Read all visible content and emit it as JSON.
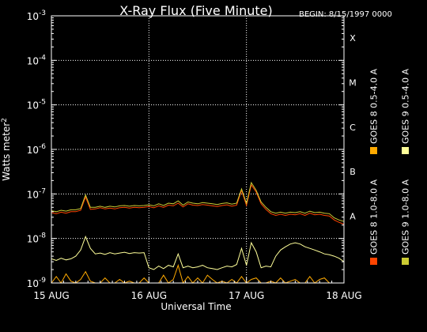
{
  "chart_data": {
    "type": "line",
    "title": "X-Ray Flux (Five Minute)",
    "begin_label": "BEGIN: 8/15/1997 0000",
    "xlabel": "Universal Time",
    "ylabel": "Watts meter",
    "ylabel_sup": "2",
    "y_scale": "log",
    "ylim": [
      1e-09,
      0.001
    ],
    "xlim": [
      0,
      3
    ],
    "y_ticks": [
      {
        "value": 0.001,
        "base": "10",
        "exp": "-3"
      },
      {
        "value": 0.0001,
        "base": "10",
        "exp": "-4"
      },
      {
        "value": 1e-05,
        "base": "10",
        "exp": "-5"
      },
      {
        "value": 1e-06,
        "base": "10",
        "exp": "-6"
      },
      {
        "value": 1e-07,
        "base": "10",
        "exp": "-7"
      },
      {
        "value": 1e-08,
        "base": "10",
        "exp": "-8"
      },
      {
        "value": 1e-09,
        "base": "10",
        "exp": "-9"
      }
    ],
    "x_ticks": [
      {
        "value": 0,
        "label": "15 AUG"
      },
      {
        "value": 1,
        "label": "16 AUG"
      },
      {
        "value": 2,
        "label": "17 AUG"
      },
      {
        "value": 3,
        "label": "18 AUG"
      }
    ],
    "flare_classes": [
      {
        "label": "X",
        "value": 0.0001
      },
      {
        "label": "M",
        "value": 1e-05
      },
      {
        "label": "C",
        "value": 1e-06
      },
      {
        "label": "B",
        "value": 1e-07
      },
      {
        "label": "A",
        "value": 1e-08
      }
    ],
    "grid": true,
    "legend_position": "right",
    "colors": {
      "goes8_long": "#ff4400",
      "goes8_short": "#ffaa00",
      "goes9_long": "#cccc33",
      "goes9_short": "#ffff99"
    },
    "series": [
      {
        "name": "GOES 8 1.0-8.0 A",
        "color": "#ff4400",
        "x": [
          0.0,
          0.05,
          0.1,
          0.15,
          0.2,
          0.25,
          0.3,
          0.35,
          0.4,
          0.45,
          0.5,
          0.55,
          0.6,
          0.65,
          0.7,
          0.75,
          0.8,
          0.85,
          0.9,
          0.95,
          1.0,
          1.05,
          1.1,
          1.15,
          1.2,
          1.25,
          1.3,
          1.35,
          1.4,
          1.45,
          1.5,
          1.55,
          1.6,
          1.65,
          1.7,
          1.75,
          1.8,
          1.85,
          1.9,
          1.95,
          2.0,
          2.05,
          2.1,
          2.15,
          2.2,
          2.25,
          2.3,
          2.35,
          2.4,
          2.45,
          2.5,
          2.55,
          2.6,
          2.65,
          2.7,
          2.75,
          2.8,
          2.85,
          2.9,
          2.95,
          3.0
        ],
        "y": [
          3.8e-08,
          3.6e-08,
          3.9e-08,
          3.7e-08,
          4e-08,
          4e-08,
          4.3e-08,
          8.5e-08,
          4.5e-08,
          4.6e-08,
          4.9e-08,
          4.6e-08,
          4.8e-08,
          4.6e-08,
          4.9e-08,
          5e-08,
          4.8e-08,
          5e-08,
          4.9e-08,
          5e-08,
          5.2e-08,
          4.9e-08,
          5.4e-08,
          5e-08,
          5.6e-08,
          5.4e-08,
          6.2e-08,
          5.1e-08,
          6e-08,
          5.6e-08,
          5.5e-08,
          5.8e-08,
          5.6e-08,
          5.4e-08,
          5.2e-08,
          5.5e-08,
          5.7e-08,
          5.3e-08,
          5.6e-08,
          1.2e-07,
          5.5e-08,
          1.6e-07,
          1.1e-07,
          6e-08,
          4.5e-08,
          3.6e-08,
          3.3e-08,
          3.5e-08,
          3.3e-08,
          3.5e-08,
          3.4e-08,
          3.6e-08,
          3.3e-08,
          3.7e-08,
          3.4e-08,
          3.5e-08,
          3.3e-08,
          3.2e-08,
          2.6e-08,
          2.3e-08,
          2.1e-08
        ]
      },
      {
        "name": "GOES 8 0.5-4.0 A",
        "color": "#ffaa00",
        "x": [
          0.0,
          0.05,
          0.1,
          0.15,
          0.2,
          0.25,
          0.3,
          0.35,
          0.4,
          0.45,
          0.5,
          0.55,
          0.6,
          0.65,
          0.7,
          0.75,
          0.8,
          0.85,
          0.9,
          0.95,
          1.0,
          1.05,
          1.1,
          1.15,
          1.2,
          1.25,
          1.3,
          1.35,
          1.4,
          1.45,
          1.5,
          1.55,
          1.6,
          1.65,
          1.7,
          1.75,
          1.8,
          1.85,
          1.9,
          1.95,
          2.0,
          2.05,
          2.1,
          2.15,
          2.2,
          2.25,
          2.3,
          2.35,
          2.4,
          2.45,
          2.5,
          2.55,
          2.6,
          2.65,
          2.7,
          2.75,
          2.8,
          2.85,
          2.9,
          2.95,
          3.0
        ],
        "y": [
          1e-09,
          1.4e-09,
          1e-09,
          1.6e-09,
          1.1e-09,
          1e-09,
          1.2e-09,
          1.8e-09,
          1.1e-09,
          1e-09,
          1e-09,
          1.3e-09,
          1e-09,
          1e-09,
          1.2e-09,
          1e-09,
          1.1e-09,
          1e-09,
          1e-09,
          1.3e-09,
          1e-09,
          1e-09,
          1e-09,
          1.5e-09,
          1e-09,
          1.2e-09,
          2.5e-09,
          1e-09,
          1.4e-09,
          1e-09,
          1.3e-09,
          1e-09,
          1.5e-09,
          1.2e-09,
          1e-09,
          1.1e-09,
          1e-09,
          1.2e-09,
          1e-09,
          1.4e-09,
          1e-09,
          1.2e-09,
          1.3e-09,
          1e-09,
          1e-09,
          1.1e-09,
          1e-09,
          1.3e-09,
          1e-09,
          1.1e-09,
          1.2e-09,
          1e-09,
          1e-09,
          1.4e-09,
          1e-09,
          1.2e-09,
          1.3e-09,
          1e-09,
          1e-09,
          1e-09,
          1e-09
        ]
      },
      {
        "name": "GOES 9 1.0-8.0 A",
        "color": "#cccc33",
        "x": [
          0.0,
          0.05,
          0.1,
          0.15,
          0.2,
          0.25,
          0.3,
          0.35,
          0.4,
          0.45,
          0.5,
          0.55,
          0.6,
          0.65,
          0.7,
          0.75,
          0.8,
          0.85,
          0.9,
          0.95,
          1.0,
          1.05,
          1.1,
          1.15,
          1.2,
          1.25,
          1.3,
          1.35,
          1.4,
          1.45,
          1.5,
          1.55,
          1.6,
          1.65,
          1.7,
          1.75,
          1.8,
          1.85,
          1.9,
          1.95,
          2.0,
          2.05,
          2.1,
          2.15,
          2.2,
          2.25,
          2.3,
          2.35,
          2.4,
          2.45,
          2.5,
          2.55,
          2.6,
          2.65,
          2.7,
          2.75,
          2.8,
          2.85,
          2.9,
          2.95,
          3.0
        ],
        "y": [
          4.2e-08,
          4e-08,
          4.3e-08,
          4.1e-08,
          4.4e-08,
          4.4e-08,
          4.7e-08,
          9.5e-08,
          5e-08,
          5e-08,
          5.3e-08,
          5e-08,
          5.3e-08,
          5.1e-08,
          5.4e-08,
          5.5e-08,
          5.3e-08,
          5.5e-08,
          5.4e-08,
          5.5e-08,
          5.7e-08,
          5.4e-08,
          6e-08,
          5.5e-08,
          6.2e-08,
          6e-08,
          7e-08,
          5.6e-08,
          6.6e-08,
          6.2e-08,
          6e-08,
          6.4e-08,
          6.2e-08,
          6e-08,
          5.8e-08,
          6.1e-08,
          6.3e-08,
          5.9e-08,
          6.2e-08,
          1.3e-07,
          6.1e-08,
          1.8e-07,
          1.2e-07,
          6.6e-08,
          5e-08,
          4e-08,
          3.7e-08,
          3.9e-08,
          3.7e-08,
          3.9e-08,
          3.8e-08,
          4e-08,
          3.7e-08,
          4.1e-08,
          3.8e-08,
          3.9e-08,
          3.7e-08,
          3.6e-08,
          2.9e-08,
          2.6e-08,
          2.4e-08
        ]
      },
      {
        "name": "GOES 9 0.5-4.0 A",
        "color": "#ffff99",
        "x": [
          0.0,
          0.05,
          0.1,
          0.15,
          0.2,
          0.25,
          0.3,
          0.35,
          0.4,
          0.45,
          0.5,
          0.55,
          0.6,
          0.65,
          0.7,
          0.75,
          0.8,
          0.85,
          0.9,
          0.95,
          1.0,
          1.05,
          1.1,
          1.15,
          1.2,
          1.25,
          1.3,
          1.35,
          1.4,
          1.45,
          1.5,
          1.55,
          1.6,
          1.65,
          1.7,
          1.75,
          1.8,
          1.85,
          1.9,
          1.95,
          2.0,
          2.05,
          2.1,
          2.15,
          2.2,
          2.25,
          2.3,
          2.35,
          2.4,
          2.45,
          2.5,
          2.55,
          2.6,
          2.65,
          2.7,
          2.75,
          2.8,
          2.85,
          2.9,
          2.95,
          3.0
        ],
        "y": [
          3.5e-09,
          3.2e-09,
          3.6e-09,
          3.3e-09,
          3.5e-09,
          4e-09,
          5.5e-09,
          1.1e-08,
          6e-09,
          4.5e-09,
          4.7e-09,
          4.4e-09,
          4.8e-09,
          4.5e-09,
          4.7e-09,
          4.9e-09,
          4.6e-09,
          4.8e-09,
          4.7e-09,
          4.8e-09,
          2.2e-09,
          2e-09,
          2.4e-09,
          2.1e-09,
          2.5e-09,
          2.3e-09,
          4.5e-09,
          2.2e-09,
          2.4e-09,
          2.2e-09,
          2.3e-09,
          2.5e-09,
          2.2e-09,
          2.1e-09,
          2e-09,
          2.2e-09,
          2.4e-09,
          2.3e-09,
          2.6e-09,
          6e-09,
          2.5e-09,
          8e-09,
          5e-09,
          2.2e-09,
          2.4e-09,
          2.3e-09,
          4e-09,
          5.5e-09,
          6.5e-09,
          7.5e-09,
          8e-09,
          7.5e-09,
          6.5e-09,
          6e-09,
          5.5e-09,
          5e-09,
          4.5e-09,
          4.3e-09,
          4e-09,
          3.6e-09,
          3e-09
        ]
      }
    ]
  }
}
